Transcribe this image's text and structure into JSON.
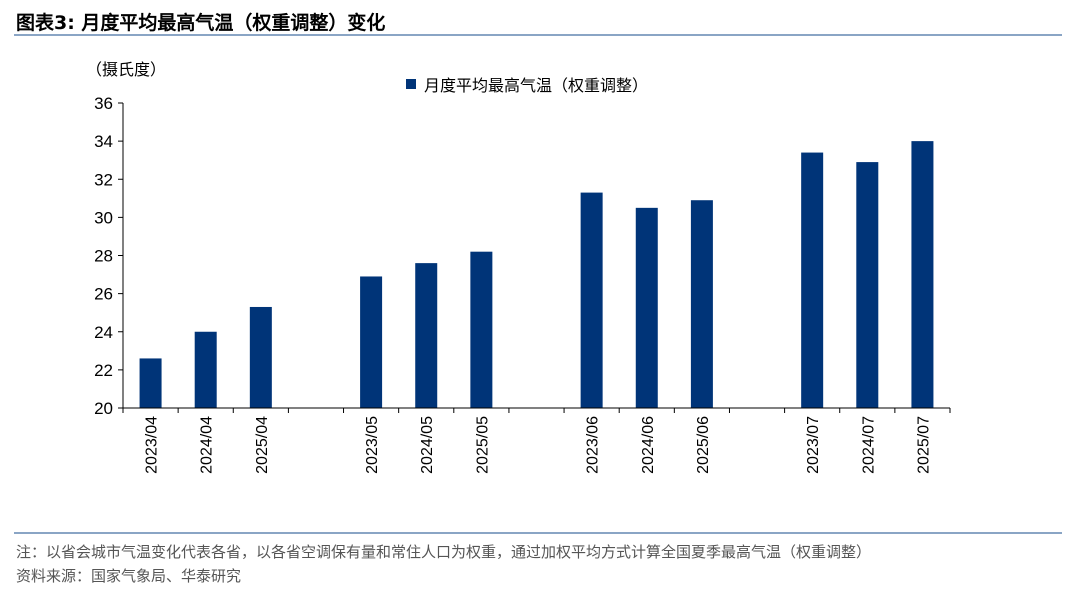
{
  "figure": {
    "title": "图表3:  月度平均最高气温（权重调整）变化",
    "unit_label": "（摄氏度）",
    "note": "注：以省会城市气温变化代表各省，以各省空调保有量和常住人口为权重，通过加权平均方式计算全国夏季最高气温（权重调整）",
    "source": "资料来源：国家气象局、华泰研究"
  },
  "colors": {
    "bar": "#003478",
    "rule": "#8aa5c5"
  },
  "chart_data": {
    "type": "bar",
    "categories": [
      "2023/04",
      "2024/04",
      "2025/04",
      "",
      "2023/05",
      "2024/05",
      "2025/05",
      "",
      "2023/06",
      "2024/06",
      "2025/06",
      "",
      "2023/07",
      "2024/07",
      "2025/07"
    ],
    "series": [
      {
        "name": "月度平均最高气温（权重调整）",
        "values": [
          22.6,
          24.0,
          25.3,
          null,
          26.9,
          27.6,
          28.2,
          null,
          31.3,
          30.5,
          30.9,
          null,
          33.4,
          32.9,
          34.0
        ]
      }
    ],
    "ylim": [
      20,
      36
    ],
    "yticks": [
      "20",
      "22",
      "24",
      "26",
      "28",
      "30",
      "32",
      "34",
      "36"
    ],
    "legend_position": "top-center",
    "grid": false
  }
}
